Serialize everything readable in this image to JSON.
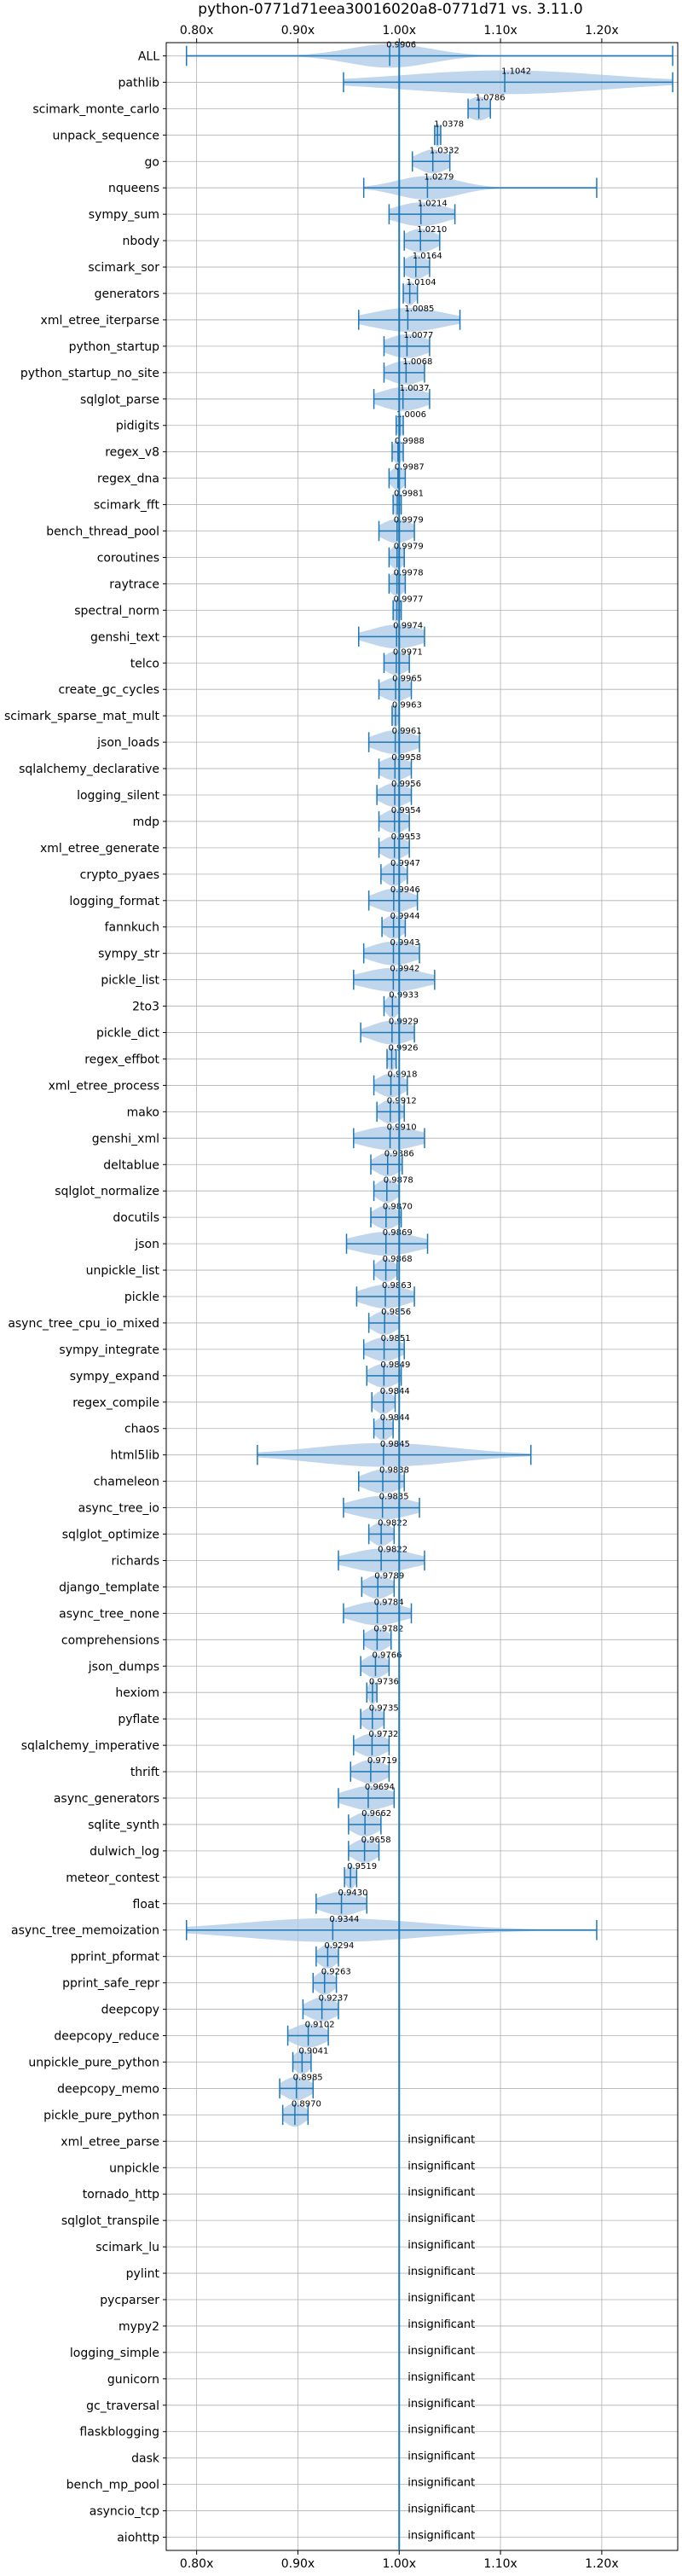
{
  "chart_data": {
    "type": "violin",
    "title": "python-0771d71eea30016020a8-0771d71 vs. 3.11.0",
    "xlabel": "",
    "ylabel": "",
    "xlim": [
      0.77,
      1.275
    ],
    "x_ticks": [
      0.8,
      0.9,
      1.0,
      1.1,
      1.2
    ],
    "x_tick_labels": [
      "0.80x",
      "0.90x",
      "1.00x",
      "1.10x",
      "1.20x"
    ],
    "reference_line": 1.0,
    "grid": true,
    "colors": {
      "line": "#1f77b4",
      "violin": "#aac8e6",
      "grid": "#b0b0b0"
    },
    "insignificant_label": "insignificant",
    "rows": [
      {
        "name": "ALL",
        "median": 0.9906,
        "min": 0.79,
        "max": 1.27,
        "spread": 0.04,
        "label": "0.9906"
      },
      {
        "name": "pathlib",
        "median": 1.1042,
        "min": 0.945,
        "max": 1.27,
        "spread": 0.1,
        "label": "1.1042"
      },
      {
        "name": "scimark_monte_carlo",
        "median": 1.0786,
        "min": 1.068,
        "max": 1.09,
        "spread": 0.012,
        "label": "1.0786"
      },
      {
        "name": "unpack_sequence",
        "median": 1.0378,
        "min": 1.035,
        "max": 1.041,
        "spread": 0.003,
        "label": "1.0378"
      },
      {
        "name": "go",
        "median": 1.0332,
        "min": 1.013,
        "max": 1.05,
        "spread": 0.015,
        "label": "1.0332"
      },
      {
        "name": "nqueens",
        "median": 1.0279,
        "min": 0.965,
        "max": 1.195,
        "spread": 0.03,
        "label": "1.0279"
      },
      {
        "name": "sympy_sum",
        "median": 1.0214,
        "min": 0.99,
        "max": 1.055,
        "spread": 0.025,
        "label": "1.0214"
      },
      {
        "name": "nbody",
        "median": 1.021,
        "min": 1.005,
        "max": 1.04,
        "spread": 0.015,
        "label": "1.0210"
      },
      {
        "name": "scimark_sor",
        "median": 1.0164,
        "min": 1.005,
        "max": 1.03,
        "spread": 0.012,
        "label": "1.0164"
      },
      {
        "name": "generators",
        "median": 1.0104,
        "min": 1.004,
        "max": 1.018,
        "spread": 0.006,
        "label": "1.0104"
      },
      {
        "name": "xml_etree_iterparse",
        "median": 1.0085,
        "min": 0.96,
        "max": 1.06,
        "spread": 0.035,
        "label": "1.0085"
      },
      {
        "name": "python_startup",
        "median": 1.0077,
        "min": 0.985,
        "max": 1.03,
        "spread": 0.02,
        "label": "1.0077"
      },
      {
        "name": "python_startup_no_site",
        "median": 1.0068,
        "min": 0.985,
        "max": 1.025,
        "spread": 0.018,
        "label": "1.0068"
      },
      {
        "name": "sqlglot_parse",
        "median": 1.0037,
        "min": 0.975,
        "max": 1.03,
        "spread": 0.022,
        "label": "1.0037"
      },
      {
        "name": "pidigits",
        "median": 1.0006,
        "min": 0.997,
        "max": 1.004,
        "spread": 0.003,
        "label": "1.0006"
      },
      {
        "name": "regex_v8",
        "median": 0.9988,
        "min": 0.993,
        "max": 1.004,
        "spread": 0.005,
        "label": "0.9988"
      },
      {
        "name": "regex_dna",
        "median": 0.9987,
        "min": 0.99,
        "max": 1.006,
        "spread": 0.007,
        "label": "0.9987"
      },
      {
        "name": "scimark_fft",
        "median": 0.9981,
        "min": 0.994,
        "max": 1.002,
        "spread": 0.004,
        "label": "0.9981"
      },
      {
        "name": "bench_thread_pool",
        "median": 0.9979,
        "min": 0.98,
        "max": 1.015,
        "spread": 0.015,
        "label": "0.9979"
      },
      {
        "name": "coroutines",
        "median": 0.9979,
        "min": 0.99,
        "max": 1.005,
        "spread": 0.007,
        "label": "0.9979"
      },
      {
        "name": "raytrace",
        "median": 0.9978,
        "min": 0.99,
        "max": 1.006,
        "spread": 0.008,
        "label": "0.9978"
      },
      {
        "name": "spectral_norm",
        "median": 0.9977,
        "min": 0.994,
        "max": 1.002,
        "spread": 0.004,
        "label": "0.9977"
      },
      {
        "name": "genshi_text",
        "median": 0.9974,
        "min": 0.96,
        "max": 1.025,
        "spread": 0.025,
        "label": "0.9974"
      },
      {
        "name": "telco",
        "median": 0.9971,
        "min": 0.985,
        "max": 1.01,
        "spread": 0.012,
        "label": "0.9971"
      },
      {
        "name": "create_gc_cycles",
        "median": 0.9965,
        "min": 0.98,
        "max": 1.012,
        "spread": 0.014,
        "label": "0.9965"
      },
      {
        "name": "scimark_sparse_mat_mult",
        "median": 0.9963,
        "min": 0.993,
        "max": 1.0,
        "spread": 0.003,
        "label": "0.9963"
      },
      {
        "name": "json_loads",
        "median": 0.9961,
        "min": 0.97,
        "max": 1.02,
        "spread": 0.02,
        "label": "0.9961"
      },
      {
        "name": "sqlalchemy_declarative",
        "median": 0.9958,
        "min": 0.98,
        "max": 1.012,
        "spread": 0.014,
        "label": "0.9958"
      },
      {
        "name": "logging_silent",
        "median": 0.9956,
        "min": 0.978,
        "max": 1.012,
        "spread": 0.014,
        "label": "0.9956"
      },
      {
        "name": "mdp",
        "median": 0.9954,
        "min": 0.98,
        "max": 1.01,
        "spread": 0.012,
        "label": "0.9954"
      },
      {
        "name": "xml_etree_generate",
        "median": 0.9953,
        "min": 0.98,
        "max": 1.01,
        "spread": 0.012,
        "label": "0.9953"
      },
      {
        "name": "crypto_pyaes",
        "median": 0.9947,
        "min": 0.982,
        "max": 1.008,
        "spread": 0.01,
        "label": "0.9947"
      },
      {
        "name": "logging_format",
        "median": 0.9946,
        "min": 0.97,
        "max": 1.018,
        "spread": 0.018,
        "label": "0.9946"
      },
      {
        "name": "fannkuch",
        "median": 0.9944,
        "min": 0.983,
        "max": 1.006,
        "spread": 0.01,
        "label": "0.9944"
      },
      {
        "name": "sympy_str",
        "median": 0.9943,
        "min": 0.965,
        "max": 1.02,
        "spread": 0.022,
        "label": "0.9943"
      },
      {
        "name": "pickle_list",
        "median": 0.9942,
        "min": 0.955,
        "max": 1.035,
        "spread": 0.03,
        "label": "0.9942"
      },
      {
        "name": "2to3",
        "median": 0.9933,
        "min": 0.985,
        "max": 1.0,
        "spread": 0.006,
        "label": "0.9933"
      },
      {
        "name": "pickle_dict",
        "median": 0.9929,
        "min": 0.962,
        "max": 1.015,
        "spread": 0.02,
        "label": "0.9929"
      },
      {
        "name": "regex_effbot",
        "median": 0.9926,
        "min": 0.988,
        "max": 0.997,
        "spread": 0.004,
        "label": "0.9926"
      },
      {
        "name": "xml_etree_process",
        "median": 0.9918,
        "min": 0.975,
        "max": 1.008,
        "spread": 0.013,
        "label": "0.9918"
      },
      {
        "name": "mako",
        "median": 0.9912,
        "min": 0.978,
        "max": 1.005,
        "spread": 0.011,
        "label": "0.9912"
      },
      {
        "name": "genshi_xml",
        "median": 0.991,
        "min": 0.955,
        "max": 1.025,
        "spread": 0.028,
        "label": "0.9910"
      },
      {
        "name": "deltablue",
        "median": 0.9886,
        "min": 0.972,
        "max": 1.003,
        "spread": 0.012,
        "label": "0.9886"
      },
      {
        "name": "sqlglot_normalize",
        "median": 0.9878,
        "min": 0.975,
        "max": 1.0,
        "spread": 0.01,
        "label": "0.9878"
      },
      {
        "name": "docutils",
        "median": 0.987,
        "min": 0.972,
        "max": 1.002,
        "spread": 0.012,
        "label": "0.9870"
      },
      {
        "name": "json",
        "median": 0.9869,
        "min": 0.948,
        "max": 1.028,
        "spread": 0.03,
        "label": "0.9869"
      },
      {
        "name": "unpickle_list",
        "median": 0.9868,
        "min": 0.975,
        "max": 0.998,
        "spread": 0.009,
        "label": "0.9868"
      },
      {
        "name": "pickle",
        "median": 0.9863,
        "min": 0.958,
        "max": 1.015,
        "spread": 0.022,
        "label": "0.9863"
      },
      {
        "name": "async_tree_cpu_io_mixed",
        "median": 0.9856,
        "min": 0.97,
        "max": 1.0,
        "spread": 0.012,
        "label": "0.9856"
      },
      {
        "name": "sympy_integrate",
        "median": 0.9851,
        "min": 0.965,
        "max": 1.005,
        "spread": 0.016,
        "label": "0.9851"
      },
      {
        "name": "sympy_expand",
        "median": 0.9849,
        "min": 0.968,
        "max": 1.002,
        "spread": 0.014,
        "label": "0.9849"
      },
      {
        "name": "regex_compile",
        "median": 0.9844,
        "min": 0.973,
        "max": 0.996,
        "spread": 0.009,
        "label": "0.9844"
      },
      {
        "name": "chaos",
        "median": 0.9844,
        "min": 0.975,
        "max": 0.994,
        "spread": 0.008,
        "label": "0.9844"
      },
      {
        "name": "html5lib",
        "median": 0.9845,
        "min": 0.86,
        "max": 1.13,
        "spread": 0.07,
        "label": "0.9845"
      },
      {
        "name": "chameleon",
        "median": 0.9838,
        "min": 0.96,
        "max": 1.005,
        "spread": 0.018,
        "label": "0.9838"
      },
      {
        "name": "async_tree_io",
        "median": 0.9835,
        "min": 0.945,
        "max": 1.02,
        "spread": 0.028,
        "label": "0.9835"
      },
      {
        "name": "sqlglot_optimize",
        "median": 0.9822,
        "min": 0.97,
        "max": 0.995,
        "spread": 0.01,
        "label": "0.9822"
      },
      {
        "name": "richards",
        "median": 0.9822,
        "min": 0.94,
        "max": 1.025,
        "spread": 0.03,
        "label": "0.9822"
      },
      {
        "name": "django_template",
        "median": 0.9789,
        "min": 0.963,
        "max": 0.995,
        "spread": 0.013,
        "label": "0.9789"
      },
      {
        "name": "async_tree_none",
        "median": 0.9784,
        "min": 0.945,
        "max": 1.012,
        "spread": 0.025,
        "label": "0.9784"
      },
      {
        "name": "comprehensions",
        "median": 0.9782,
        "min": 0.965,
        "max": 0.992,
        "spread": 0.011,
        "label": "0.9782"
      },
      {
        "name": "json_dumps",
        "median": 0.9766,
        "min": 0.962,
        "max": 0.99,
        "spread": 0.011,
        "label": "0.9766"
      },
      {
        "name": "hexiom",
        "median": 0.9736,
        "min": 0.968,
        "max": 0.978,
        "spread": 0.004,
        "label": "0.9736"
      },
      {
        "name": "pyflate",
        "median": 0.9735,
        "min": 0.962,
        "max": 0.985,
        "spread": 0.01,
        "label": "0.9735"
      },
      {
        "name": "sqlalchemy_imperative",
        "median": 0.9732,
        "min": 0.955,
        "max": 0.99,
        "spread": 0.014,
        "label": "0.9732"
      },
      {
        "name": "thrift",
        "median": 0.9719,
        "min": 0.952,
        "max": 0.99,
        "spread": 0.015,
        "label": "0.9719"
      },
      {
        "name": "async_generators",
        "median": 0.9694,
        "min": 0.94,
        "max": 0.995,
        "spread": 0.022,
        "label": "0.9694"
      },
      {
        "name": "sqlite_synth",
        "median": 0.9662,
        "min": 0.95,
        "max": 0.982,
        "spread": 0.013,
        "label": "0.9662"
      },
      {
        "name": "dulwich_log",
        "median": 0.9658,
        "min": 0.95,
        "max": 0.98,
        "spread": 0.012,
        "label": "0.9658"
      },
      {
        "name": "meteor_contest",
        "median": 0.9519,
        "min": 0.946,
        "max": 0.958,
        "spread": 0.005,
        "label": "0.9519"
      },
      {
        "name": "float",
        "median": 0.943,
        "min": 0.918,
        "max": 0.968,
        "spread": 0.02,
        "label": "0.9430"
      },
      {
        "name": "async_tree_memoization",
        "median": 0.9344,
        "min": 0.79,
        "max": 1.195,
        "spread": 0.09,
        "label": "0.9344"
      },
      {
        "name": "pprint_pformat",
        "median": 0.9294,
        "min": 0.918,
        "max": 0.94,
        "spread": 0.009,
        "label": "0.9294"
      },
      {
        "name": "pprint_safe_repr",
        "median": 0.9263,
        "min": 0.915,
        "max": 0.938,
        "spread": 0.009,
        "label": "0.9263"
      },
      {
        "name": "deepcopy",
        "median": 0.9237,
        "min": 0.905,
        "max": 0.94,
        "spread": 0.014,
        "label": "0.9237"
      },
      {
        "name": "deepcopy_reduce",
        "median": 0.9102,
        "min": 0.89,
        "max": 0.93,
        "spread": 0.016,
        "label": "0.9102"
      },
      {
        "name": "unpickle_pure_python",
        "median": 0.9041,
        "min": 0.895,
        "max": 0.913,
        "spread": 0.008,
        "label": "0.9041"
      },
      {
        "name": "deepcopy_memo",
        "median": 0.8985,
        "min": 0.882,
        "max": 0.915,
        "spread": 0.013,
        "label": "0.8985"
      },
      {
        "name": "pickle_pure_python",
        "median": 0.897,
        "min": 0.885,
        "max": 0.91,
        "spread": 0.01,
        "label": "0.8970"
      },
      {
        "name": "xml_etree_parse",
        "insignificant": true
      },
      {
        "name": "unpickle",
        "insignificant": true
      },
      {
        "name": "tornado_http",
        "insignificant": true
      },
      {
        "name": "sqlglot_transpile",
        "insignificant": true
      },
      {
        "name": "scimark_lu",
        "insignificant": true
      },
      {
        "name": "pylint",
        "insignificant": true
      },
      {
        "name": "pycparser",
        "insignificant": true
      },
      {
        "name": "mypy2",
        "insignificant": true
      },
      {
        "name": "logging_simple",
        "insignificant": true
      },
      {
        "name": "gunicorn",
        "insignificant": true
      },
      {
        "name": "gc_traversal",
        "insignificant": true
      },
      {
        "name": "flaskblogging",
        "insignificant": true
      },
      {
        "name": "dask",
        "insignificant": true
      },
      {
        "name": "bench_mp_pool",
        "insignificant": true
      },
      {
        "name": "asyncio_tcp",
        "insignificant": true
      },
      {
        "name": "aiohttp",
        "insignificant": true
      }
    ]
  }
}
